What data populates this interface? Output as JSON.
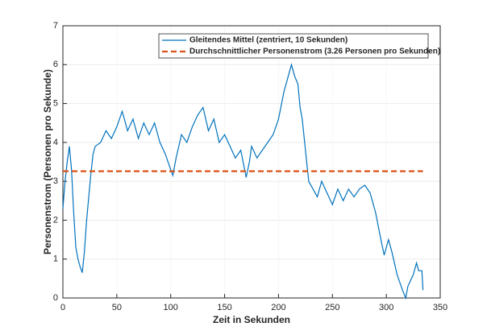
{
  "chart_data": {
    "type": "line",
    "xlabel": "Zeit in Sekunden",
    "ylabel": "Personenstrom (Personen pro Sekunde)",
    "x": [
      0,
      2,
      4,
      6,
      8,
      10,
      12,
      14,
      16,
      18,
      20,
      22,
      24,
      26,
      28,
      30,
      35,
      40,
      45,
      50,
      55,
      60,
      65,
      70,
      75,
      80,
      85,
      90,
      95,
      100,
      102,
      105,
      110,
      115,
      120,
      125,
      130,
      135,
      140,
      145,
      150,
      155,
      160,
      165,
      170,
      173,
      175,
      180,
      185,
      190,
      195,
      200,
      205,
      210,
      212,
      215,
      218,
      220,
      222,
      225,
      228,
      232,
      236,
      240,
      245,
      250,
      255,
      260,
      265,
      270,
      275,
      280,
      285,
      290,
      295,
      298,
      302,
      305,
      310,
      315,
      318,
      320,
      325,
      328,
      330,
      333,
      334
    ],
    "series": [
      {
        "name": "Gleitendes Mittel (zentriert, 10 Sekunden)",
        "color": "#0072bd",
        "values": [
          2.3,
          3.0,
          3.5,
          3.9,
          3.3,
          2.2,
          1.3,
          1.0,
          0.8,
          0.65,
          1.2,
          2.0,
          2.6,
          3.2,
          3.7,
          3.9,
          4.0,
          4.3,
          4.1,
          4.4,
          4.8,
          4.3,
          4.6,
          4.1,
          4.5,
          4.2,
          4.5,
          4.0,
          3.7,
          3.3,
          3.15,
          3.6,
          4.2,
          4.0,
          4.4,
          4.7,
          4.9,
          4.3,
          4.6,
          4.0,
          4.2,
          3.9,
          3.6,
          3.8,
          3.1,
          3.5,
          3.9,
          3.6,
          3.8,
          4.0,
          4.2,
          4.6,
          5.3,
          5.8,
          6.0,
          5.7,
          5.5,
          4.9,
          4.6,
          3.8,
          3.0,
          2.8,
          2.6,
          3.0,
          2.7,
          2.4,
          2.8,
          2.5,
          2.8,
          2.6,
          2.8,
          2.9,
          2.7,
          2.2,
          1.5,
          1.1,
          1.5,
          1.2,
          0.6,
          0.2,
          0.0,
          0.3,
          0.6,
          0.9,
          0.7,
          0.7,
          0.2
        ]
      }
    ],
    "reference_line": {
      "name": "Durchschnittlicher Personenstrom (3.26 Personen pro Sekunden)",
      "value": 3.26,
      "color": "#d95319",
      "style": "dashed"
    },
    "xlim": [
      0,
      350
    ],
    "xticks": [
      0,
      50,
      100,
      150,
      200,
      250,
      300,
      350
    ],
    "ylim": [
      0,
      7
    ],
    "yticks": [
      0,
      1,
      2,
      3,
      4,
      5,
      6,
      7
    ],
    "grid": true,
    "legend": "top"
  }
}
